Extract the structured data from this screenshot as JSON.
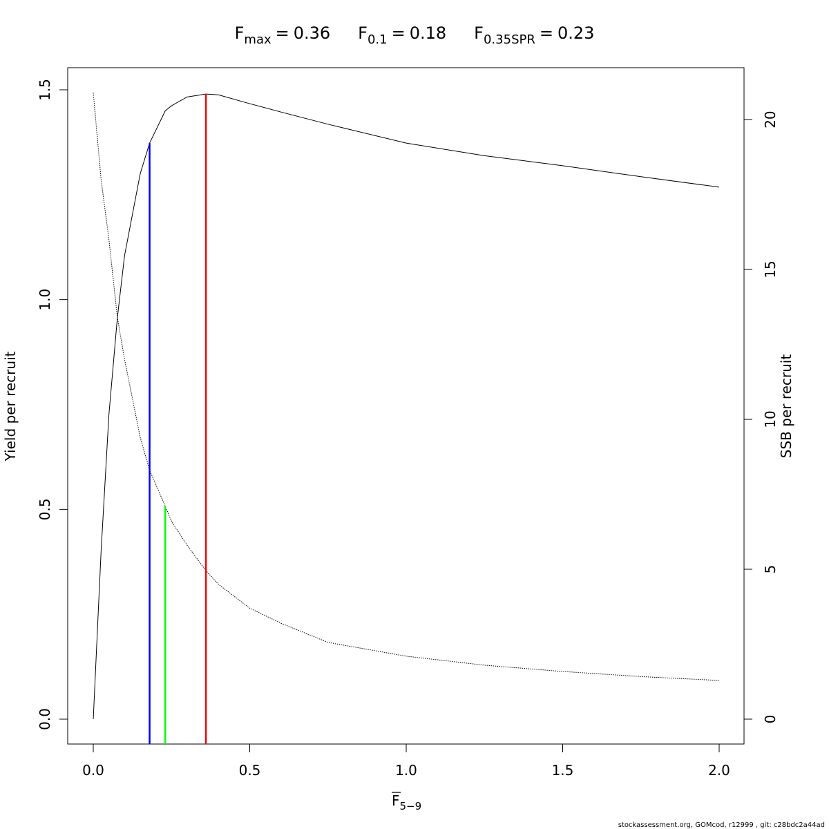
{
  "chart_data": {
    "type": "line",
    "reference_lines": [
      {
        "symbol": "F",
        "subscript": "max",
        "relation": "=",
        "value": 0.36,
        "top": 1.49,
        "color": "#ff0000"
      },
      {
        "symbol": "F",
        "subscript": "0.1",
        "relation": "=",
        "value": 0.18,
        "top": 1.373,
        "color": "#0000ff"
      },
      {
        "symbol": "F",
        "subscript": "0.35SPR",
        "relation": "=",
        "value": 0.23,
        "top": 0.507,
        "color": "#00ff00"
      }
    ],
    "x_label": {
      "symbol": "F",
      "subscript": "5−9"
    },
    "y_label": "Yield per recruit",
    "y2_label": "SSB per recruit",
    "footer": "stockassessment.org, GOMcod, r12999 , git: c28bdc2a44ad",
    "x": [
      0,
      0.025,
      0.05,
      0.077,
      0.1,
      0.15,
      0.18,
      0.23,
      0.25,
      0.3,
      0.36,
      0.4,
      0.5,
      0.6,
      0.75,
      1.0,
      1.25,
      1.5,
      1.75,
      2.0
    ],
    "series": [
      {
        "name": "Yield per recruit",
        "color": "#000000",
        "dash": "solid",
        "values": [
          0,
          0.4,
          0.726,
          0.957,
          1.105,
          1.3,
          1.373,
          1.45,
          1.462,
          1.483,
          1.49,
          1.488,
          1.467,
          1.447,
          1.418,
          1.373,
          1.343,
          1.319,
          1.293,
          1.268
        ]
      },
      {
        "name": "SSB per recruit",
        "color": "#000000",
        "dash": "dotted",
        "axis": "y2",
        "values": [
          20.9,
          18.0,
          16.0,
          13.4,
          12.0,
          9.4,
          8.3,
          7.1,
          6.6,
          5.8,
          4.95,
          4.5,
          3.7,
          3.2,
          2.56,
          2.1,
          1.8,
          1.59,
          1.42,
          1.29
        ]
      }
    ],
    "xlim": [
      -0.0817,
      2.0795
    ],
    "xticks": [
      {
        "value": 0,
        "label": "0.0"
      },
      {
        "value": 0.5,
        "label": "0.5"
      },
      {
        "value": 1,
        "label": "1.0"
      },
      {
        "value": 1.5,
        "label": "1.5"
      },
      {
        "value": 2,
        "label": "2.0"
      }
    ],
    "ylim": [
      -0.0593,
      1.5527
    ],
    "yticks": [
      {
        "value": 0,
        "label": "0.0"
      },
      {
        "value": 0.5,
        "label": "0.5"
      },
      {
        "value": 1,
        "label": "1.0"
      },
      {
        "value": 1.5,
        "label": "1.5"
      }
    ],
    "y2lim": [
      -0.83,
      21.73
    ],
    "y2ticks": [
      0,
      5,
      10,
      15,
      20
    ]
  }
}
